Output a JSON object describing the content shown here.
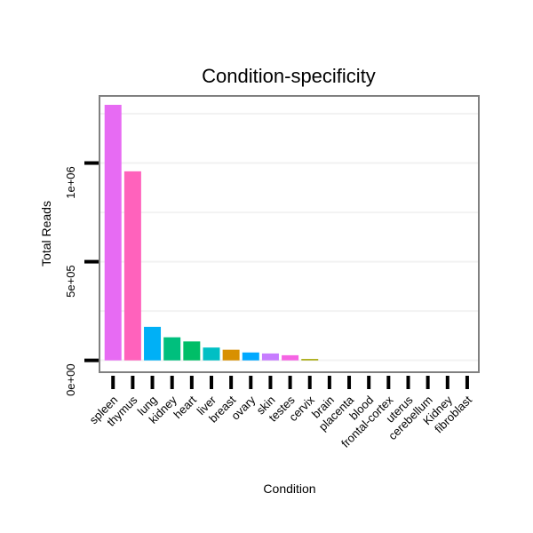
{
  "chart_data": {
    "type": "bar",
    "title": "Condition-specificity",
    "xlabel": "Condition",
    "ylabel": "Total Reads",
    "categories": [
      "spleen",
      "thymus",
      "lung",
      "kidney",
      "heart",
      "liver",
      "breast",
      "ovary",
      "skin",
      "testes",
      "cervix",
      "brain",
      "placenta",
      "blood",
      "frontal-cortex",
      "uterus",
      "cerebellum",
      "Kidney",
      "fibroblast"
    ],
    "values": [
      1295000,
      958000,
      170000,
      117000,
      96000,
      65000,
      54000,
      40000,
      35000,
      26000,
      7000,
      0,
      0,
      0,
      0,
      0,
      0,
      0,
      0
    ],
    "colors": [
      "#E76BF3",
      "#FF62BC",
      "#00B0F6",
      "#00BF7D",
      "#00BE67",
      "#00BFC4",
      "#D89000",
      "#00A9FF",
      "#C77CFF",
      "#F564E3",
      "#A3A500",
      "#F8766D",
      "#F8766D",
      "#F8766D",
      "#F8766D",
      "#F8766D",
      "#F8766D",
      "#F8766D",
      "#F8766D"
    ],
    "yticks": [
      0,
      500000,
      1000000
    ],
    "ytick_labels": [
      "0e+00",
      "5e+05",
      "1e+06"
    ],
    "ylim": [
      -60000,
      1340000
    ],
    "grid": true,
    "legend": "none"
  }
}
